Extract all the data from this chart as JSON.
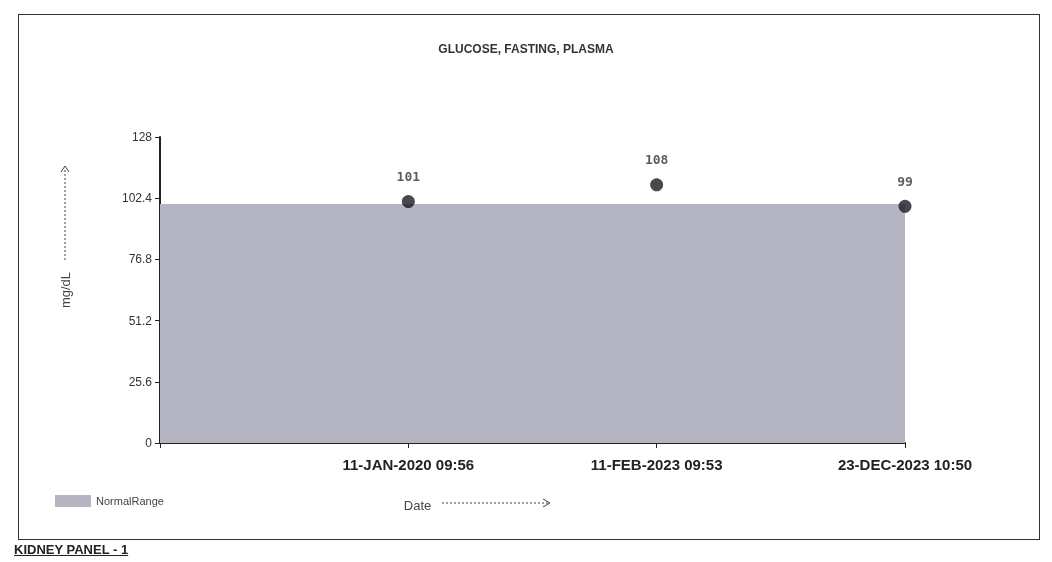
{
  "chart_data": {
    "type": "scatter",
    "title": "GLUCOSE, FASTING, PLASMA",
    "xlabel": "Date",
    "ylabel": "mg/dL",
    "categories": [
      null,
      "11-JAN-2020 09:56",
      "11-FEB-2023 09:53",
      "23-DEC-2023 10:50"
    ],
    "values": [
      null,
      101,
      108,
      99
    ],
    "color": "#1a1a22",
    "marker": "circle",
    "data_labels": true,
    "ylim": [
      0,
      128
    ],
    "yticks": [
      0,
      25.6,
      51.2,
      76.8,
      102.4,
      128
    ],
    "grid": false,
    "bands": [
      {
        "axis": "y",
        "from": 0,
        "to": 100,
        "label": "NormalRange",
        "color": "#b4b4c2"
      }
    ],
    "legend": "bottom left",
    "annotations": [
      "KIDNEY PANEL - 1"
    ]
  }
}
